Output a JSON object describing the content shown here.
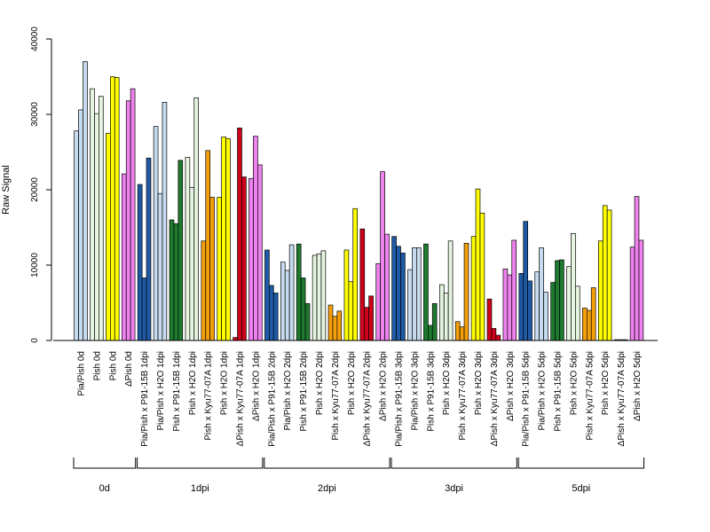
{
  "chart_data": {
    "type": "bar",
    "ylabel": "Raw Signal",
    "xlabel": "",
    "ylim": [
      0,
      40000
    ],
    "yticks": [
      "0",
      "10000",
      "20000",
      "30000",
      "40000"
    ],
    "grid": false,
    "legend": "none",
    "categories": [
      "Pia/Pish 0d",
      "Pish 0d",
      "Pish 0d",
      "ΔPish 0d",
      "Pia/Pish x P91-15B 1dpi",
      "Pia/Pish x H2O 1dpi",
      "Pish x P91-15B 1dpi",
      "Pish x H2O 1dpi",
      "Pish x Kyu77-07A 1dpi",
      "Pish x H2O 1dpi",
      "ΔPish x Kyu77-07A 1dpi",
      "ΔPish x H2O 1dpi",
      "Pia/Pish x P91-15B 2dpi",
      "Pia/Pish x H2O 2dpi",
      "Pish x P91-15B 2dpi",
      "Pish x H2O 2dpi",
      "Pish x Kyu77-07A 2dpi",
      "Pish x H2O 2dpi",
      "ΔPish x Kyu77-07A 2dpi",
      "ΔPish x H2O 2dpi",
      "Pia/Pish x P91-15B 3dpi",
      "Pia/Pish x H2O 3dpi",
      "Pish x P91-15B 3dpi",
      "Pish x H2O 3dpi",
      "Pish x Kyu77-07A 3dpi",
      "Pish x H2O 3dpi",
      "ΔPish x Kyu77-07A 3dpi",
      "ΔPish x H2O 3dpi",
      "Pia/Pish x P91-15B 5dpi",
      "Pia/Pish x H2O 5dpi",
      "Pish x P91-15B 5dpi",
      "Pish x H2O 5dpi",
      "Pish x Kyu77-07A 5dpi",
      "Pish x H2O 5dpi",
      "ΔPish x Kyu77-07A 5dpi",
      "ΔPish x H2O 5dpi"
    ],
    "bar_colors": [
      "#c6dbef",
      "#e5f5e0",
      "#ffff00",
      "#ee82ee",
      "#1f5aa6",
      "#c6dbef",
      "#1e7a2e",
      "#e5f5e0",
      "#f5a00a",
      "#ffff00",
      "#d0021b",
      "#ee82ee",
      "#1f5aa6",
      "#c6dbef",
      "#1e7a2e",
      "#e5f5e0",
      "#f5a00a",
      "#ffff00",
      "#d0021b",
      "#ee82ee",
      "#1f5aa6",
      "#c6dbef",
      "#1e7a2e",
      "#e5f5e0",
      "#f5a00a",
      "#ffff00",
      "#d0021b",
      "#ee82ee",
      "#1f5aa6",
      "#c6dbef",
      "#1e7a2e",
      "#e5f5e0",
      "#f5a00a",
      "#ffff00",
      "#d0021b",
      "#ee82ee"
    ],
    "values": [
      [
        27800,
        30600,
        37000
      ],
      [
        33400,
        30100,
        32400
      ],
      [
        27500,
        35000,
        34900
      ],
      [
        22100,
        31800,
        33400
      ],
      [
        20700,
        8300,
        24200
      ],
      [
        28400,
        19500,
        31600
      ],
      [
        16000,
        15500,
        23900
      ],
      [
        24300,
        20300,
        32200
      ],
      [
        13200,
        25200,
        19000
      ],
      [
        19000,
        27000,
        26800
      ],
      [
        400,
        28200,
        21700
      ],
      [
        21500,
        27100,
        23300
      ],
      [
        12000,
        7300,
        6300
      ],
      [
        10400,
        9300,
        12700
      ],
      [
        12800,
        8300,
        4900
      ],
      [
        11300,
        11500,
        11900
      ],
      [
        4700,
        3200,
        3900
      ],
      [
        12000,
        7800,
        17500
      ],
      [
        14800,
        4400,
        5900
      ],
      [
        10200,
        22400,
        14100
      ],
      [
        13800,
        12500,
        11600
      ],
      [
        9400,
        12300,
        12300
      ],
      [
        12800,
        2000,
        4900
      ],
      [
        7400,
        6300,
        13200
      ],
      [
        2500,
        1800,
        12900
      ],
      [
        13800,
        20100,
        16900
      ],
      [
        5500,
        1600,
        700
      ],
      [
        9500,
        8700,
        13300
      ],
      [
        8900,
        15800,
        7900
      ],
      [
        9100,
        12300,
        6400
      ],
      [
        7700,
        10600,
        10700
      ],
      [
        9800,
        14200,
        7200
      ],
      [
        4300,
        4000,
        7000
      ],
      [
        13200,
        17900,
        17300
      ],
      [
        100,
        100,
        100
      ],
      [
        12400,
        19100,
        13300
      ]
    ],
    "groups": [
      {
        "label": "0d",
        "first": 0,
        "last": 3
      },
      {
        "label": "1dpi",
        "first": 4,
        "last": 11
      },
      {
        "label": "2dpi",
        "first": 12,
        "last": 19
      },
      {
        "label": "3dpi",
        "first": 20,
        "last": 27
      },
      {
        "label": "5dpi",
        "first": 28,
        "last": 35
      }
    ]
  }
}
